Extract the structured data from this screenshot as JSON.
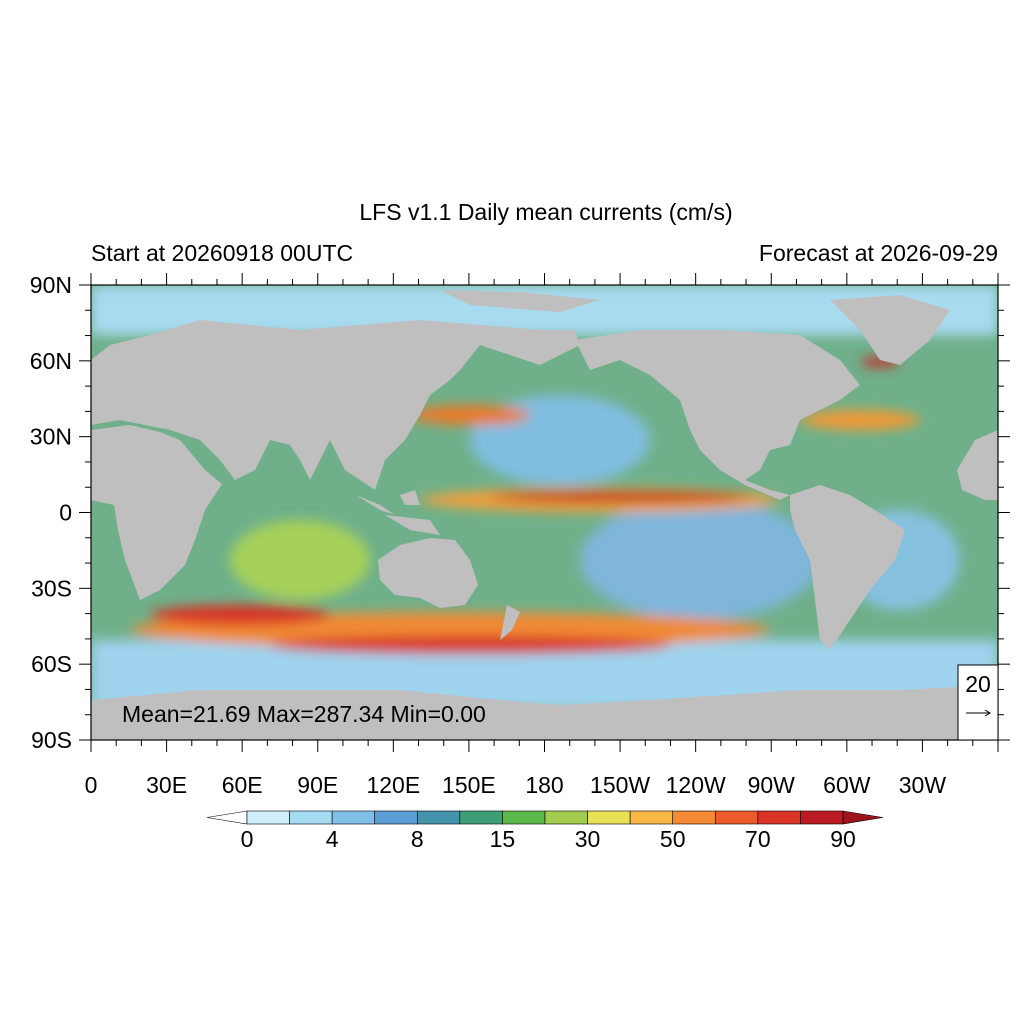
{
  "title": "LFS v1.1 Daily mean currents (cm/s)",
  "left_subtitle": "Start at 20260918 00UTC",
  "right_subtitle": "Forecast at 2026-09-29",
  "stats": "Mean=21.69  Max=287.34  Min=0.00",
  "reference_vector": "20",
  "x_labels": [
    "0",
    "30E",
    "60E",
    "90E",
    "120E",
    "150E",
    "180",
    "150W",
    "120W",
    "90W",
    "60W",
    "30W"
  ],
  "y_labels": [
    "90N",
    "60N",
    "30N",
    "0",
    "30S",
    "60S",
    "90S"
  ],
  "colorbar": {
    "labels": [
      "0",
      "4",
      "8",
      "15",
      "30",
      "50",
      "70",
      "90"
    ],
    "colors": [
      "#ffffff",
      "#cdeefa",
      "#a4daf2",
      "#80bfe6",
      "#5b9fd6",
      "#4592ab",
      "#3e9e78",
      "#5bb84a",
      "#a3cc4f",
      "#e8e055",
      "#f8b845",
      "#f48a35",
      "#ea5a2a",
      "#d83326",
      "#bb1c23",
      "#9c1419"
    ]
  }
}
